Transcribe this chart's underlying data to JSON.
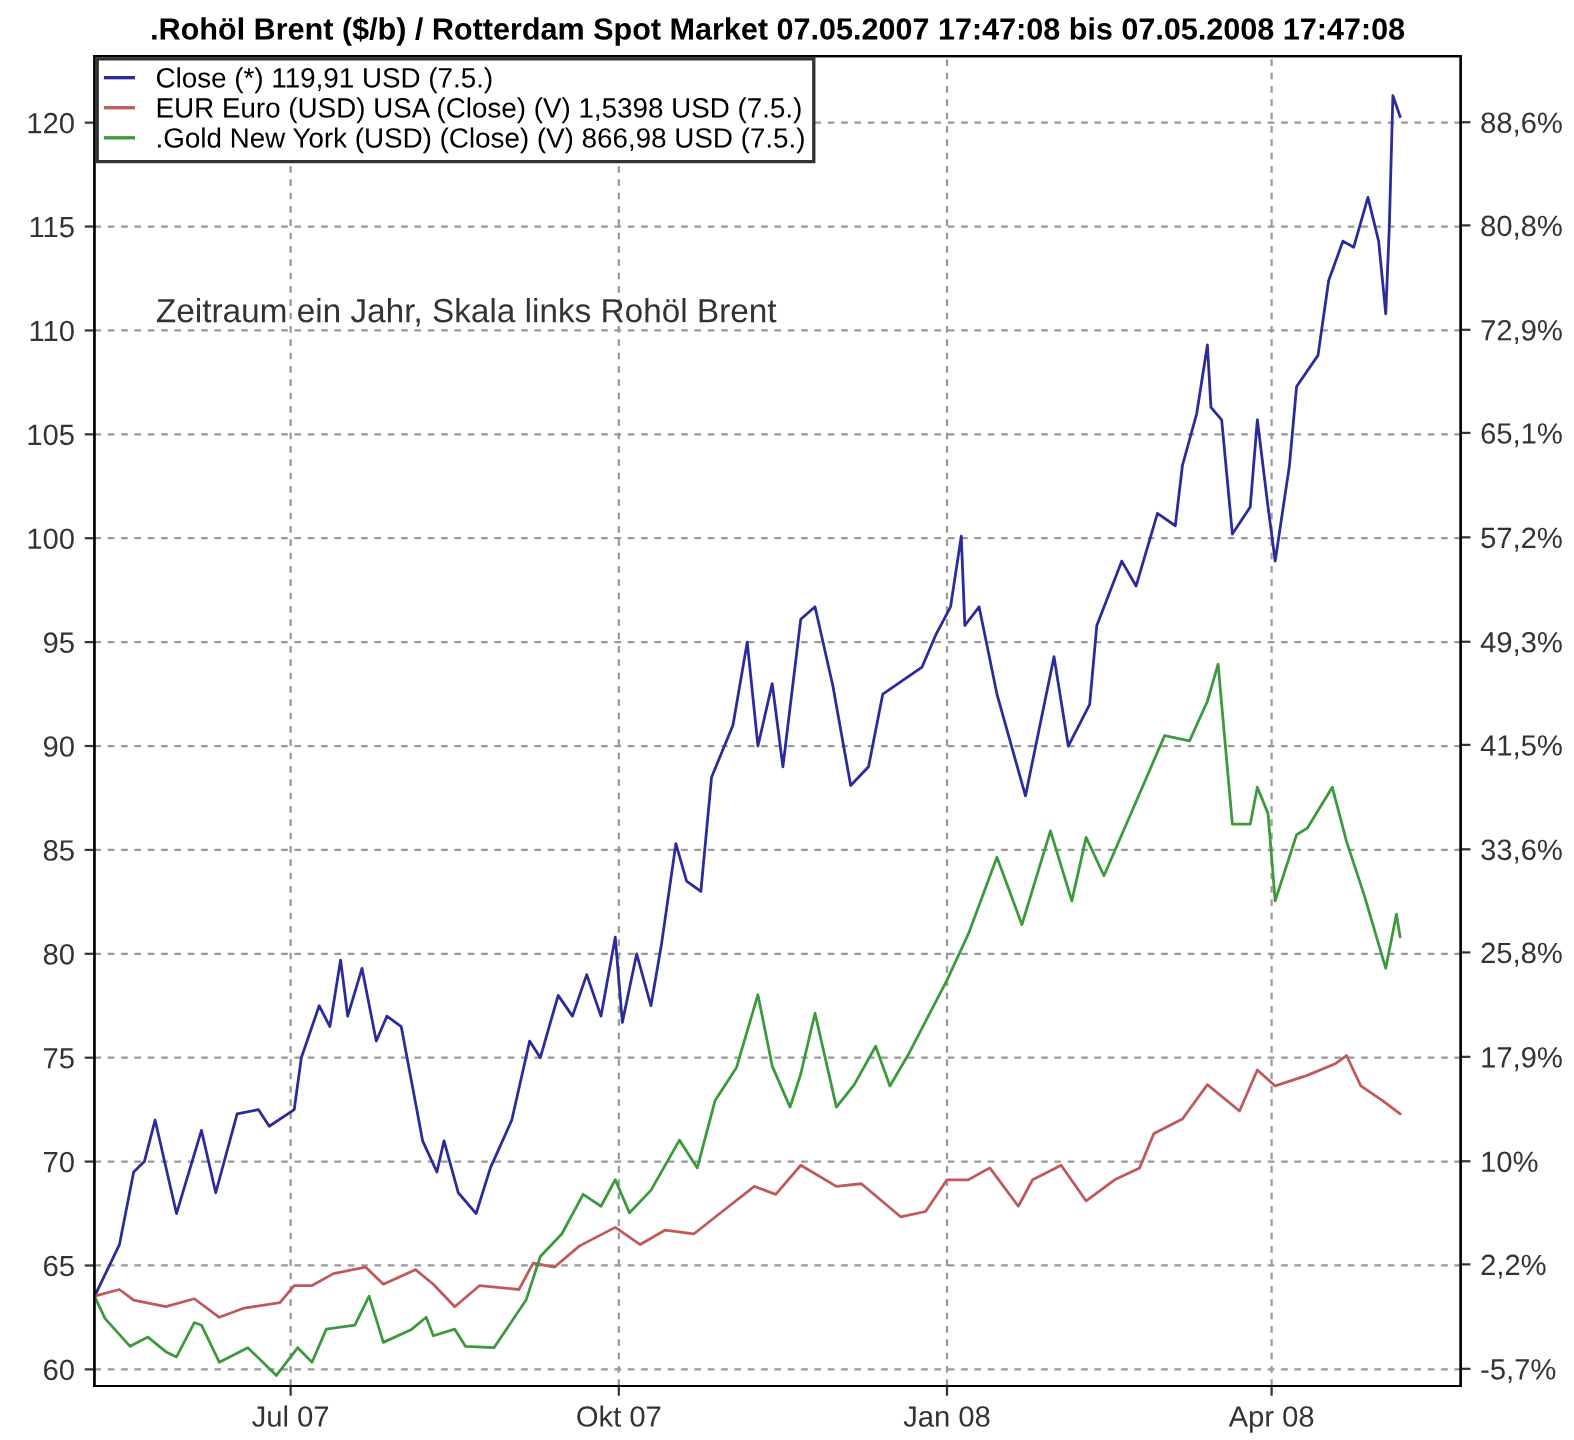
{
  "chart_data": {
    "type": "line",
    "title": ".Rohöl Brent ($/b) / Rotterdam Spot Market 07.05.2007 17:47:08 bis 07.05.2008 17:47:08",
    "annotations": [
      "Zeitraum ein Jahr, Skala links Rohöl Brent"
    ],
    "xlim": [
      "2007-05-07",
      "2008-05-24"
    ],
    "xticks": [
      {
        "value": "2007-07-01",
        "label": "Jul 07"
      },
      {
        "value": "2007-10-01",
        "label": "Okt 07"
      },
      {
        "value": "2008-01-01",
        "label": "Jan 08"
      },
      {
        "value": "2008-04-01",
        "label": "Apr 08"
      }
    ],
    "ylim": [
      59.2,
      123.2
    ],
    "yticks": [
      60,
      65,
      70,
      75,
      80,
      85,
      90,
      95,
      100,
      105,
      110,
      115,
      120
    ],
    "y2lim": [
      -7.0,
      93.6
    ],
    "y2ticks": [
      {
        "value": -5.7,
        "label": "-5,7%"
      },
      {
        "value": 2.2,
        "label": "2,2%"
      },
      {
        "value": 10,
        "label": "10%"
      },
      {
        "value": 17.9,
        "label": "17,9%"
      },
      {
        "value": 25.8,
        "label": "25,8%"
      },
      {
        "value": 33.6,
        "label": "33,6%"
      },
      {
        "value": 41.5,
        "label": "41,5%"
      },
      {
        "value": 49.3,
        "label": "49,3%"
      },
      {
        "value": 57.2,
        "label": "57,2%"
      },
      {
        "value": 65.1,
        "label": "65,1%"
      },
      {
        "value": 72.9,
        "label": "72,9%"
      },
      {
        "value": 80.8,
        "label": "80,8%"
      },
      {
        "value": 88.6,
        "label": "88,6%"
      }
    ],
    "grid": true,
    "legend": "top left",
    "line_style": "solid",
    "marker": "none",
    "series": [
      {
        "name": "Close (*) 119,91 USD (7.5.)",
        "color": "#2b2b9a",
        "x": [
          "2007-05-07",
          "2007-05-14",
          "2007-05-18",
          "2007-05-21",
          "2007-05-24",
          "2007-05-30",
          "2007-06-06",
          "2007-06-10",
          "2007-06-16",
          "2007-06-22",
          "2007-06-25",
          "2007-07-02",
          "2007-07-04",
          "2007-07-09",
          "2007-07-12",
          "2007-07-15",
          "2007-07-17",
          "2007-07-21",
          "2007-07-25",
          "2007-07-28",
          "2007-08-01",
          "2007-08-07",
          "2007-08-11",
          "2007-08-13",
          "2007-08-17",
          "2007-08-22",
          "2007-08-26",
          "2007-09-01",
          "2007-09-06",
          "2007-09-09",
          "2007-09-14",
          "2007-09-18",
          "2007-09-22",
          "2007-09-26",
          "2007-09-30",
          "2007-10-02",
          "2007-10-06",
          "2007-10-10",
          "2007-10-13",
          "2007-10-17",
          "2007-10-20",
          "2007-10-24",
          "2007-10-27",
          "2007-11-02",
          "2007-11-06",
          "2007-11-09",
          "2007-11-13",
          "2007-11-16",
          "2007-11-21",
          "2007-11-25",
          "2007-11-30",
          "2007-12-05",
          "2007-12-10",
          "2007-12-14",
          "2007-12-25",
          "2007-12-29",
          "2008-01-02",
          "2008-01-05",
          "2008-01-06",
          "2008-01-10",
          "2008-01-15",
          "2008-01-23",
          "2008-01-31",
          "2008-02-04",
          "2008-02-10",
          "2008-02-12",
          "2008-02-19",
          "2008-02-23",
          "2008-02-29",
          "2008-03-05",
          "2008-03-07",
          "2008-03-11",
          "2008-03-14",
          "2008-03-15",
          "2008-03-18",
          "2008-03-21",
          "2008-03-26",
          "2008-03-28",
          "2008-03-31",
          "2008-04-02",
          "2008-04-06",
          "2008-04-08",
          "2008-04-14",
          "2008-04-17",
          "2008-04-21",
          "2008-04-24",
          "2008-04-28",
          "2008-05-01",
          "2008-05-03",
          "2008-05-04",
          "2008-05-05",
          "2008-05-07"
        ],
        "values": [
          63.5,
          66,
          69.5,
          70,
          72,
          67.5,
          71.5,
          68.5,
          72.3,
          72.5,
          71.7,
          72.5,
          75,
          77.5,
          76.5,
          79.7,
          77,
          79.3,
          75.8,
          77,
          76.5,
          71,
          69.5,
          71,
          68.5,
          67.5,
          69.7,
          72,
          75.8,
          75,
          78,
          77,
          79,
          77,
          80.8,
          76.7,
          80,
          77.5,
          80.5,
          85.3,
          83.5,
          83,
          88.5,
          91,
          95,
          90,
          93,
          89,
          96.1,
          96.7,
          92.9,
          88.1,
          89,
          92.5,
          93.8,
          95.4,
          96.7,
          100.1,
          95.8,
          96.7,
          92.5,
          87.6,
          94.3,
          90,
          92,
          95.8,
          98.9,
          97.7,
          101.2,
          100.6,
          103.5,
          106,
          109.3,
          106.3,
          105.7,
          100.2,
          101.5,
          105.7,
          101.5,
          98.9,
          103.5,
          107.3,
          108.8,
          112.4,
          114.3,
          114,
          116.4,
          114.3,
          110.8,
          115,
          121.3,
          120.3
        ]
      },
      {
        "name": "EUR Euro (USD) USA (Close) (V) 1,5398 USD (7.5.)",
        "color": "#c05a5a",
        "axis": "y2",
        "x": [
          "2007-05-07",
          "2007-05-14",
          "2007-05-18",
          "2007-05-27",
          "2007-06-04",
          "2007-06-11",
          "2007-06-18",
          "2007-06-28",
          "2007-07-02",
          "2007-07-07",
          "2007-07-13",
          "2007-07-22",
          "2007-07-27",
          "2007-08-05",
          "2007-08-10",
          "2007-08-16",
          "2007-08-23",
          "2007-09-03",
          "2007-09-07",
          "2007-09-13",
          "2007-09-20",
          "2007-09-30",
          "2007-10-07",
          "2007-10-14",
          "2007-10-22",
          "2007-10-30",
          "2007-11-08",
          "2007-11-14",
          "2007-11-21",
          "2007-12-01",
          "2007-12-08",
          "2007-12-19",
          "2007-12-26",
          "2008-01-01",
          "2008-01-07",
          "2008-01-13",
          "2008-01-21",
          "2008-01-25",
          "2008-02-02",
          "2008-02-09",
          "2008-02-17",
          "2008-02-24",
          "2008-02-28",
          "2008-03-07",
          "2008-03-14",
          "2008-03-23",
          "2008-03-28",
          "2008-04-02",
          "2008-04-11",
          "2008-04-19",
          "2008-04-22",
          "2008-04-26",
          "2008-05-02",
          "2008-05-07"
        ],
        "values": [
          -0.2,
          0.3,
          -0.5,
          -1.0,
          -0.4,
          -1.8,
          -1.1,
          -0.7,
          0.6,
          0.6,
          1.5,
          2.0,
          0.7,
          1.8,
          0.7,
          -1.0,
          0.6,
          0.3,
          2.3,
          2.0,
          3.6,
          5.0,
          3.7,
          4.8,
          4.5,
          6.2,
          8.1,
          7.5,
          9.7,
          8.1,
          8.3,
          5.8,
          6.2,
          8.6,
          8.6,
          9.5,
          6.6,
          8.6,
          9.7,
          7.0,
          8.6,
          9.5,
          12.1,
          13.2,
          15.8,
          13.8,
          16.9,
          15.7,
          16.5,
          17.4,
          18.0,
          15.7,
          14.6,
          13.6
        ]
      },
      {
        "name": ".Gold New York (USD) (Close) (V) 866,98 USD (7.5.)",
        "color": "#3c9a3c",
        "axis": "y2",
        "x": [
          "2007-05-07",
          "2007-05-10",
          "2007-05-17",
          "2007-05-22",
          "2007-05-27",
          "2007-05-30",
          "2007-06-04",
          "2007-06-06",
          "2007-06-11",
          "2007-06-19",
          "2007-06-27",
          "2007-07-03",
          "2007-07-07",
          "2007-07-11",
          "2007-07-19",
          "2007-07-23",
          "2007-07-27",
          "2007-08-04",
          "2007-08-08",
          "2007-08-10",
          "2007-08-16",
          "2007-08-19",
          "2007-08-27",
          "2007-09-05",
          "2007-09-09",
          "2007-09-15",
          "2007-09-21",
          "2007-09-26",
          "2007-09-30",
          "2007-10-04",
          "2007-10-10",
          "2007-10-18",
          "2007-10-23",
          "2007-10-28",
          "2007-11-03",
          "2007-11-09",
          "2007-11-13",
          "2007-11-18",
          "2007-11-21",
          "2007-11-25",
          "2007-12-01",
          "2007-12-06",
          "2007-12-12",
          "2007-12-16",
          "2007-12-21",
          "2008-01-01",
          "2008-01-07",
          "2008-01-15",
          "2008-01-22",
          "2008-01-30",
          "2008-02-05",
          "2008-02-09",
          "2008-02-14",
          "2008-02-23",
          "2008-03-02",
          "2008-03-09",
          "2008-03-14",
          "2008-03-17",
          "2008-03-21",
          "2008-03-26",
          "2008-03-28",
          "2008-03-31",
          "2008-04-02",
          "2008-04-08",
          "2008-04-11",
          "2008-04-18",
          "2008-04-22",
          "2008-04-27",
          "2008-05-03",
          "2008-05-06",
          "2008-05-07"
        ],
        "values": [
          -0.2,
          -1.9,
          -4.0,
          -3.3,
          -4.4,
          -4.8,
          -2.2,
          -2.4,
          -5.2,
          -4.1,
          -6.2,
          -4.1,
          -5.2,
          -2.7,
          -2.4,
          -0.2,
          -3.7,
          -2.7,
          -1.8,
          -3.2,
          -2.7,
          -4.0,
          -4.1,
          -0.5,
          2.8,
          4.5,
          7.5,
          6.6,
          8.6,
          6.1,
          7.8,
          11.6,
          9.5,
          14.6,
          17.1,
          22.6,
          17.2,
          14.1,
          16.6,
          21.2,
          14.1,
          15.8,
          18.7,
          15.7,
          18.0,
          23.7,
          27.2,
          33.0,
          27.9,
          35.0,
          29.7,
          34.5,
          31.6,
          37.2,
          42.2,
          41.8,
          44.8,
          47.6,
          35.5,
          35.5,
          38.3,
          36.3,
          29.7,
          34.7,
          35.2,
          38.3,
          34.2,
          30.1,
          24.6,
          28.7,
          27.0
        ]
      }
    ]
  }
}
